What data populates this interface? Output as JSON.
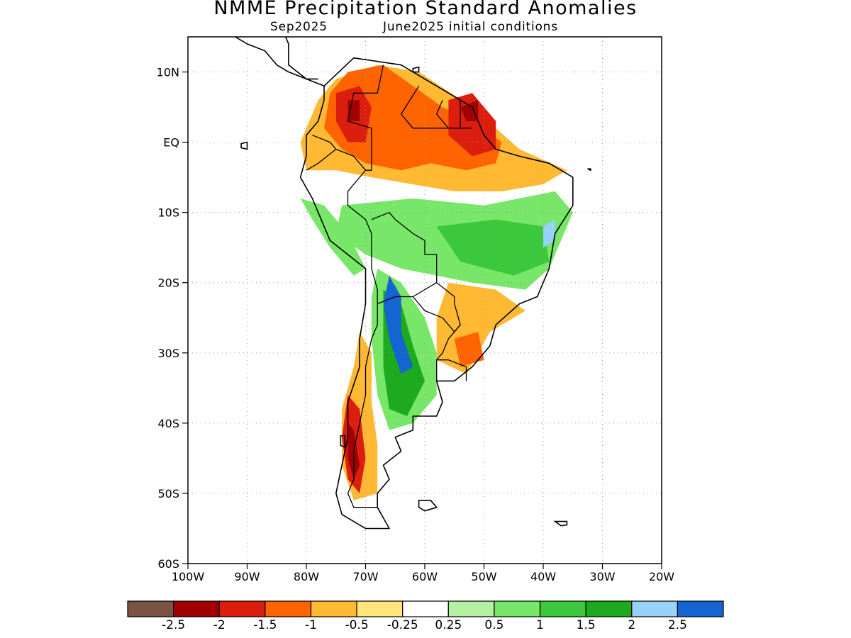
{
  "title": "NMME Precipitation Standard Anomalies",
  "subtitle_target": "Sep2025",
  "subtitle_init": "June2025 initial conditions",
  "map": {
    "lon_range": [
      -100,
      -20
    ],
    "lat_range": [
      -60,
      15
    ],
    "lat_ticks": [
      {
        "value": 10,
        "label": "10N"
      },
      {
        "value": 0,
        "label": "EQ"
      },
      {
        "value": -10,
        "label": "10S"
      },
      {
        "value": -20,
        "label": "20S"
      },
      {
        "value": -30,
        "label": "30S"
      },
      {
        "value": -40,
        "label": "40S"
      },
      {
        "value": -50,
        "label": "50S"
      },
      {
        "value": -60,
        "label": "60S"
      }
    ],
    "lon_ticks": [
      {
        "value": -100,
        "label": "100W"
      },
      {
        "value": -90,
        "label": "90W"
      },
      {
        "value": -80,
        "label": "80W"
      },
      {
        "value": -70,
        "label": "70W"
      },
      {
        "value": -60,
        "label": "60W"
      },
      {
        "value": -50,
        "label": "50W"
      },
      {
        "value": -40,
        "label": "40W"
      },
      {
        "value": -30,
        "label": "30W"
      },
      {
        "value": -20,
        "label": "20W"
      }
    ],
    "gridlines": "dotted"
  },
  "colorbar": {
    "colors": [
      "#7a5246",
      "#a00000",
      "#dc1e0e",
      "#ff6400",
      "#ffb932",
      "#ffe57a",
      "#ffffff",
      "#b4f0a0",
      "#78e668",
      "#3cc83c",
      "#1eaa1e",
      "#96d2fa",
      "#1464d2"
    ],
    "labels": [
      "-2.5",
      "-2",
      "-1.5",
      "-1",
      "-0.5",
      "-0.25",
      "0.25",
      "0.5",
      "1",
      "1.5",
      "2",
      "2.5"
    ]
  },
  "anomaly_regions": [
    {
      "name": "amazon-dry",
      "color": "#ffb932",
      "points": [
        [
          -78,
          6
        ],
        [
          -75,
          9
        ],
        [
          -68,
          11
        ],
        [
          -61,
          10
        ],
        [
          -52,
          5
        ],
        [
          -44,
          -1
        ],
        [
          -36,
          -4
        ],
        [
          -40,
          -6
        ],
        [
          -47,
          -7
        ],
        [
          -55,
          -7
        ],
        [
          -62,
          -6
        ],
        [
          -69,
          -5
        ],
        [
          -75,
          -4
        ],
        [
          -80,
          -4
        ],
        [
          -81,
          0
        ]
      ]
    },
    {
      "name": "amazon-core",
      "color": "#ff6400",
      "points": [
        [
          -76,
          7
        ],
        [
          -73,
          10
        ],
        [
          -67,
          11
        ],
        [
          -62,
          8
        ],
        [
          -57,
          5
        ],
        [
          -52,
          3
        ],
        [
          -47,
          0
        ],
        [
          -48,
          -3
        ],
        [
          -53,
          -4
        ],
        [
          -59,
          -3
        ],
        [
          -64,
          -4
        ],
        [
          -70,
          -3
        ],
        [
          -74,
          -1
        ],
        [
          -77,
          2
        ]
      ]
    },
    {
      "name": "guiana-strong",
      "color": "#dc1e0e",
      "points": [
        [
          -56,
          6
        ],
        [
          -52,
          7
        ],
        [
          -48,
          3
        ],
        [
          -48,
          -1
        ],
        [
          -52,
          -2
        ],
        [
          -56,
          1
        ]
      ]
    },
    {
      "name": "guiana-extreme",
      "color": "#a00000",
      "points": [
        [
          -54,
          5
        ],
        [
          -51,
          6
        ],
        [
          -51,
          3
        ],
        [
          -53,
          3
        ]
      ]
    },
    {
      "name": "colombia-strong",
      "color": "#dc1e0e",
      "points": [
        [
          -75,
          7
        ],
        [
          -71,
          8
        ],
        [
          -69,
          5
        ],
        [
          -70,
          0
        ],
        [
          -73,
          0
        ],
        [
          -75,
          3
        ]
      ]
    },
    {
      "name": "colombia-extreme",
      "color": "#a00000",
      "points": [
        [
          -73,
          6
        ],
        [
          -71,
          6
        ],
        [
          -71,
          3
        ],
        [
          -73,
          3
        ]
      ]
    },
    {
      "name": "brazil-wet",
      "color": "#78e668",
      "points": [
        [
          -74,
          -9
        ],
        [
          -62,
          -8
        ],
        [
          -50,
          -9
        ],
        [
          -38,
          -7
        ],
        [
          -35,
          -10
        ],
        [
          -39,
          -18
        ],
        [
          -43,
          -21
        ],
        [
          -52,
          -20
        ],
        [
          -58,
          -19
        ],
        [
          -64,
          -18
        ],
        [
          -70,
          -16
        ],
        [
          -75,
          -13
        ]
      ]
    },
    {
      "name": "brazil-wet-core",
      "color": "#3cc83c",
      "points": [
        [
          -58,
          -12
        ],
        [
          -48,
          -11
        ],
        [
          -40,
          -12
        ],
        [
          -39,
          -17
        ],
        [
          -45,
          -19
        ],
        [
          -54,
          -17
        ]
      ]
    },
    {
      "name": "ne-brazil-light",
      "color": "#96d2fa",
      "points": [
        [
          -40,
          -12
        ],
        [
          -38,
          -11
        ],
        [
          -38,
          -14
        ],
        [
          -40,
          -15
        ]
      ]
    },
    {
      "name": "se-brazil-dry",
      "color": "#ffb932",
      "points": [
        [
          -56,
          -20
        ],
        [
          -48,
          -21
        ],
        [
          -43,
          -24
        ],
        [
          -49,
          -27
        ],
        [
          -53,
          -33
        ],
        [
          -58,
          -31
        ],
        [
          -58,
          -25
        ]
      ]
    },
    {
      "name": "se-brazil-dry-core",
      "color": "#ff6400",
      "points": [
        [
          -55,
          -28
        ],
        [
          -51,
          -27
        ],
        [
          -50,
          -31
        ],
        [
          -54,
          -32
        ]
      ]
    },
    {
      "name": "argentina-wet",
      "color": "#78e668",
      "points": [
        [
          -68,
          -18
        ],
        [
          -64,
          -20
        ],
        [
          -60,
          -25
        ],
        [
          -58,
          -30
        ],
        [
          -58,
          -36
        ],
        [
          -62,
          -40
        ],
        [
          -66,
          -41
        ],
        [
          -68,
          -36
        ],
        [
          -69,
          -28
        ],
        [
          -69,
          -22
        ]
      ]
    },
    {
      "name": "argentina-wet-core",
      "color": "#1eaa1e",
      "points": [
        [
          -67,
          -21
        ],
        [
          -64,
          -23
        ],
        [
          -62,
          -29
        ],
        [
          -60,
          -34
        ],
        [
          -63,
          -39
        ],
        [
          -66,
          -38
        ],
        [
          -67,
          -32
        ],
        [
          -67,
          -26
        ]
      ]
    },
    {
      "name": "argentina-wet-blue",
      "color": "#1464d2",
      "points": [
        [
          -66,
          -19
        ],
        [
          -64,
          -22
        ],
        [
          -64,
          -27
        ],
        [
          -62,
          -32
        ],
        [
          -64,
          -33
        ],
        [
          -66,
          -28
        ],
        [
          -67,
          -23
        ]
      ]
    },
    {
      "name": "andes-dry",
      "color": "#ffb932",
      "points": [
        [
          -71,
          -27
        ],
        [
          -69,
          -30
        ],
        [
          -69,
          -37
        ],
        [
          -68,
          -43
        ],
        [
          -68,
          -50
        ],
        [
          -72,
          -51
        ],
        [
          -74,
          -46
        ],
        [
          -74,
          -38
        ],
        [
          -72,
          -32
        ]
      ]
    },
    {
      "name": "patagonia-strong",
      "color": "#dc1e0e",
      "points": [
        [
          -73,
          -36
        ],
        [
          -71,
          -38
        ],
        [
          -70,
          -45
        ],
        [
          -71,
          -50
        ],
        [
          -73,
          -48
        ],
        [
          -74,
          -42
        ]
      ]
    },
    {
      "name": "patagonia-extreme",
      "color": "#a00000",
      "points": [
        [
          -73,
          -40
        ],
        [
          -72,
          -41
        ],
        [
          -71,
          -46
        ],
        [
          -72,
          -48
        ],
        [
          -73,
          -45
        ]
      ]
    },
    {
      "name": "peru-wet",
      "color": "#78e668",
      "points": [
        [
          -81,
          -8
        ],
        [
          -77,
          -9
        ],
        [
          -73,
          -13
        ],
        [
          -70,
          -18
        ],
        [
          -72,
          -19
        ],
        [
          -76,
          -15
        ],
        [
          -79,
          -11
        ]
      ]
    }
  ],
  "coastline": [
    [
      -77,
      8
    ],
    [
      -72,
      12
    ],
    [
      -64,
      11
    ],
    [
      -60,
      9
    ],
    [
      -52,
      5
    ],
    [
      -50,
      1
    ],
    [
      -48,
      -1
    ],
    [
      -44,
      -2
    ],
    [
      -39,
      -3
    ],
    [
      -35,
      -5
    ],
    [
      -35,
      -9
    ],
    [
      -38,
      -13
    ],
    [
      -39,
      -18
    ],
    [
      -41,
      -22
    ],
    [
      -44,
      -23
    ],
    [
      -48,
      -26
    ],
    [
      -49,
      -29
    ],
    [
      -52,
      -32
    ],
    [
      -55,
      -34
    ],
    [
      -58,
      -34
    ],
    [
      -57,
      -37
    ],
    [
      -58,
      -39
    ],
    [
      -62,
      -39
    ],
    [
      -62,
      -41
    ],
    [
      -65,
      -42
    ],
    [
      -64,
      -44
    ],
    [
      -67,
      -46
    ],
    [
      -66,
      -48
    ],
    [
      -68,
      -50
    ],
    [
      -68,
      -52
    ],
    [
      -66,
      -55
    ],
    [
      -70,
      -55
    ],
    [
      -74,
      -53
    ],
    [
      -75,
      -50
    ],
    [
      -74,
      -46
    ],
    [
      -73,
      -42
    ],
    [
      -73,
      -37
    ],
    [
      -71,
      -32
    ],
    [
      -71,
      -28
    ],
    [
      -70,
      -23
    ],
    [
      -70,
      -18
    ],
    [
      -73,
      -16
    ],
    [
      -76,
      -14
    ],
    [
      -79,
      -8
    ],
    [
      -81,
      -5
    ],
    [
      -80,
      -2
    ],
    [
      -80,
      1
    ],
    [
      -78,
      3
    ],
    [
      -77,
      6
    ]
  ],
  "central_america": [
    [
      -77,
      8
    ],
    [
      -80,
      9
    ],
    [
      -83,
      10
    ],
    [
      -85,
      11
    ],
    [
      -87,
      13
    ],
    [
      -90,
      14
    ],
    [
      -92,
      15
    ],
    [
      -94,
      16
    ],
    [
      -97,
      16
    ],
    [
      -99,
      17
    ],
    [
      -100,
      17.5
    ]
  ],
  "central_america_north": [
    [
      -100,
      20
    ],
    [
      -97,
      19
    ],
    [
      -95,
      18
    ],
    [
      -92,
      18
    ],
    [
      -90,
      21
    ],
    [
      -88,
      21
    ],
    [
      -88,
      16
    ],
    [
      -84,
      16
    ],
    [
      -83,
      14
    ],
    [
      -83,
      11
    ],
    [
      -80,
      9
    ],
    [
      -78,
      9
    ]
  ],
  "borders": [
    [
      [
        -67,
        11
      ],
      [
        -68,
        7
      ],
      [
        -72,
        7
      ],
      [
        -73,
        3
      ],
      [
        -69,
        2
      ],
      [
        -69,
        -4
      ],
      [
        -70,
        -4
      ]
    ],
    [
      [
        -61,
        8
      ],
      [
        -64,
        4
      ],
      [
        -62,
        2
      ],
      [
        -60,
        2
      ],
      [
        -57,
        2
      ],
      [
        -54,
        2
      ],
      [
        -52,
        2
      ]
    ],
    [
      [
        -57,
        6
      ],
      [
        -58,
        4
      ],
      [
        -56,
        2
      ]
    ],
    [
      [
        -54,
        6
      ],
      [
        -54,
        2
      ]
    ],
    [
      [
        -79,
        1
      ],
      [
        -76,
        0
      ],
      [
        -75,
        -1
      ],
      [
        -78,
        -3
      ],
      [
        -80,
        -4
      ]
    ],
    [
      [
        -75,
        -1
      ],
      [
        -72,
        -2
      ],
      [
        -70,
        -4
      ],
      [
        -73,
        -7
      ],
      [
        -73,
        -9
      ],
      [
        -70,
        -11
      ],
      [
        -69,
        -13
      ],
      [
        -69,
        -16
      ],
      [
        -69,
        -18
      ]
    ],
    [
      [
        -69,
        -11
      ],
      [
        -66,
        -10
      ],
      [
        -65,
        -11
      ],
      [
        -62,
        -13
      ],
      [
        -60,
        -14
      ],
      [
        -60,
        -16
      ],
      [
        -58,
        -16
      ],
      [
        -58,
        -19
      ],
      [
        -58,
        -20
      ]
    ],
    [
      [
        -69,
        -18
      ],
      [
        -68,
        -21
      ],
      [
        -68,
        -23
      ],
      [
        -65,
        -22
      ],
      [
        -62,
        -22
      ],
      [
        -58,
        -20
      ]
    ],
    [
      [
        -68,
        -23
      ],
      [
        -68,
        -26
      ],
      [
        -69,
        -28
      ],
      [
        -70,
        -32
      ],
      [
        -70,
        -36
      ],
      [
        -71,
        -40
      ],
      [
        -72,
        -44
      ],
      [
        -72,
        -48
      ],
      [
        -73,
        -50
      ],
      [
        -72,
        -52
      ],
      [
        -68,
        -52
      ]
    ],
    [
      [
        -62,
        -22
      ],
      [
        -60,
        -24
      ],
      [
        -57,
        -25
      ],
      [
        -55,
        -27
      ],
      [
        -54,
        -26
      ],
      [
        -55,
        -23
      ],
      [
        -55,
        -22
      ],
      [
        -58,
        -20
      ]
    ],
    [
      [
        -54,
        -26
      ],
      [
        -56,
        -28
      ],
      [
        -57,
        -30
      ],
      [
        -58,
        -31
      ],
      [
        -56,
        -31
      ],
      [
        -53,
        -32
      ],
      [
        -53,
        -34
      ]
    ],
    [
      [
        -58,
        -31
      ],
      [
        -58,
        -34
      ]
    ]
  ],
  "islands": [
    {
      "name": "falklands",
      "points": [
        [
          -61,
          -51
        ],
        [
          -59,
          -51
        ],
        [
          -58,
          -52
        ],
        [
          -60,
          -52.5
        ],
        [
          -61,
          -52
        ]
      ]
    },
    {
      "name": "south-georgia",
      "points": [
        [
          -38,
          -54
        ],
        [
          -36,
          -54
        ],
        [
          -36,
          -54.5
        ],
        [
          -37,
          -54.6
        ]
      ]
    },
    {
      "name": "galapagos",
      "points": [
        [
          -91,
          -0.2
        ],
        [
          -90,
          0
        ],
        [
          -90,
          -1
        ],
        [
          -91,
          -0.8
        ]
      ]
    },
    {
      "name": "trinidad",
      "points": [
        [
          -62,
          10.5
        ],
        [
          -61,
          10.7
        ],
        [
          -61,
          10
        ],
        [
          -62,
          10
        ]
      ]
    },
    {
      "name": "fernando-noronha",
      "points": [
        [
          -32.5,
          -3.8
        ],
        [
          -32,
          -3.8
        ],
        [
          -32,
          -4
        ]
      ]
    },
    {
      "name": "chiloe",
      "points": [
        [
          -74.2,
          -41.8
        ],
        [
          -73.5,
          -41.8
        ],
        [
          -73.5,
          -43.4
        ],
        [
          -74.2,
          -43.2
        ]
      ]
    }
  ]
}
